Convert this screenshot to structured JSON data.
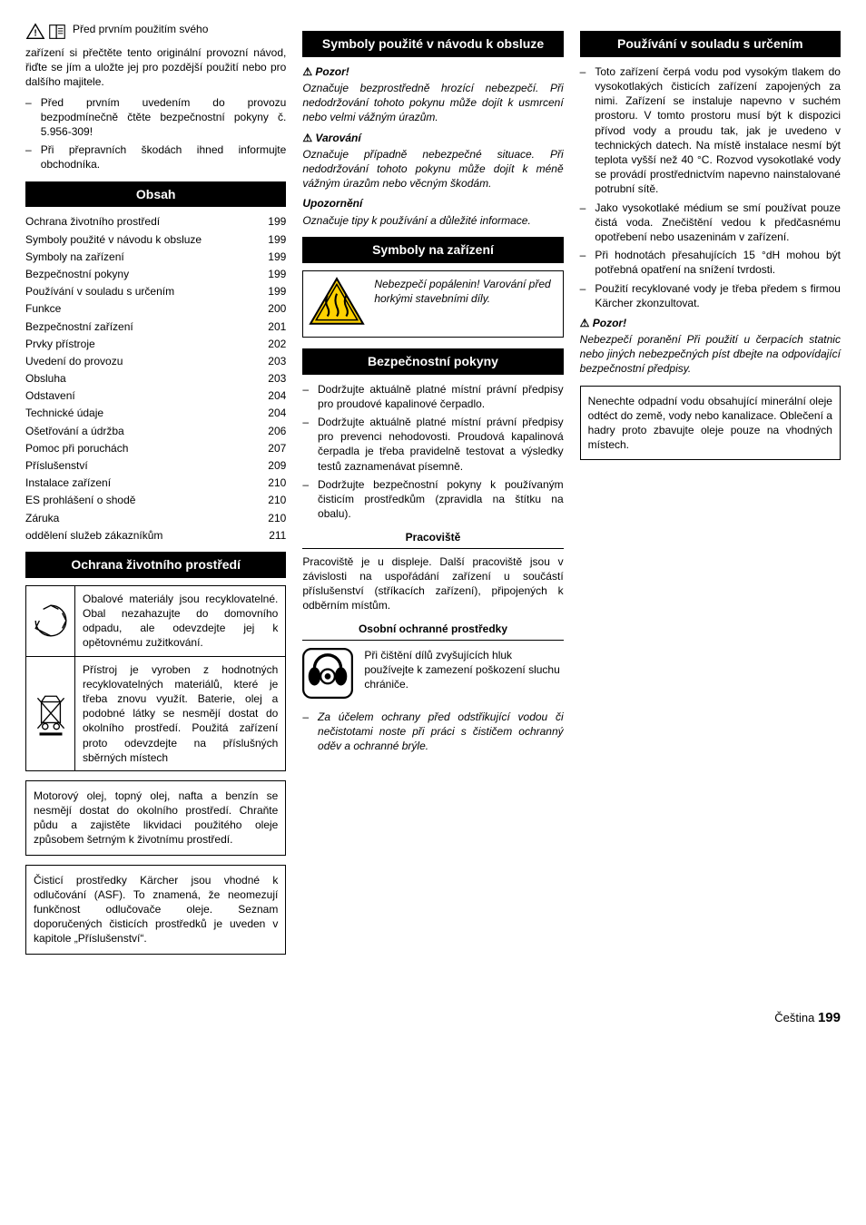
{
  "intro": {
    "lead_firstline": "Před prvním použitím svého",
    "lead_rest": "zařízení si přečtěte tento originální provozní návod, řiďte se jím a uložte jej pro pozdější použití nebo pro dalšího majitele.",
    "bullets": [
      "Před prvním uvedením do provozu bezpodmínečně čtěte bezpečnostní pokyny č. 5.956-309!",
      "Při přepravních škodách ihned informujte obchodníka."
    ]
  },
  "obsah": {
    "title": "Obsah",
    "rows": [
      {
        "label": "Ochrana životního prostředí",
        "page": "199"
      },
      {
        "label": "Symboly použité v návodu k obsluze",
        "page": "199"
      },
      {
        "label": "Symboly na zařízení",
        "page": "199"
      },
      {
        "label": "Bezpečnostní pokyny",
        "page": "199"
      },
      {
        "label": "Používání v souladu s určením",
        "page": "199"
      },
      {
        "label": "Funkce",
        "page": "200"
      },
      {
        "label": "Bezpečnostní zařízení",
        "page": "201"
      },
      {
        "label": "Prvky přístroje",
        "page": "202"
      },
      {
        "label": "Uvedení do provozu",
        "page": "203"
      },
      {
        "label": "Obsluha",
        "page": "203"
      },
      {
        "label": "Odstavení",
        "page": "204"
      },
      {
        "label": "Technické údaje",
        "page": "204"
      },
      {
        "label": "Ošetřování a údržba",
        "page": "206"
      },
      {
        "label": "Pomoc při poruchách",
        "page": "207"
      },
      {
        "label": "Příslušenství",
        "page": "209"
      },
      {
        "label": "Instalace zařízení",
        "page": "210"
      },
      {
        "label": "ES prohlášení o shodě",
        "page": "210"
      },
      {
        "label": "Záruka",
        "page": "210"
      },
      {
        "label": "oddělení služeb zákazníkům",
        "page": "211"
      }
    ]
  },
  "env": {
    "title": "Ochrana životního prostředí",
    "row1": "Obalové materiály jsou recyklovatelné. Obal nezahazujte do domovního odpadu, ale odevzdejte jej k opětovnému zužitkování.",
    "row2": "Přístroj je vyroben z hodnotných recyklovatelných materiálů, které je třeba znovu využít. Baterie, olej a podobné látky se nesmějí dostat do okolního prostředí. Použitá zařízení proto odevzdejte na příslušných sběrných místech",
    "box1": "Motorový olej, topný olej, nafta a benzín se nesmějí dostat do okolního prostředí. Chraňte půdu a zajistěte likvidaci použitého oleje způsobem šetrným k životnímu prostředí.",
    "box2": "Čisticí prostředky Kärcher jsou vhodné k odlučování (ASF). To znamená, že neomezují funkčnost odlučovače oleje. Seznam doporučených čisticích prostředků je uveden v kapitole „Příslušenství“."
  },
  "symbols_manual": {
    "title": "Symboly použité v návodu k obsluze",
    "pozor": {
      "label": "Pozor!",
      "text": "Označuje bezprostředně hrozící nebezpečí. Při nedodržování tohoto pokynu může dojít k usmrcení nebo velmi vážným úrazům."
    },
    "varovani": {
      "label": "Varování",
      "text": "Označuje případně nebezpečné situace. Při nedodržování tohoto pokynu může dojít k méně vážným úrazům nebo věcným škodám."
    },
    "upozorneni": {
      "label": "Upozornění",
      "text": "Označuje tipy k používání a důležité informace."
    }
  },
  "symbols_device": {
    "title": "Symboly na zařízení",
    "text": "Nebezpečí popálenin! Varování před horkými stavebními díly."
  },
  "safety": {
    "title": "Bezpečnostní pokyny",
    "bullets": [
      "Dodržujte aktuálně platné místní právní předpisy pro proudové kapalinové čerpadlo.",
      "Dodržujte aktuálně platné místní právní předpisy pro prevenci nehodovosti. Proudová kapalinová čerpadla je třeba pravidelně testovat a výsledky testů zaznamenávat písemně.",
      "Dodržujte bezpečnostní pokyny k používaným čisticím prostředkům (zpravidla na štítku na obalu)."
    ],
    "pracoviste": {
      "title": "Pracoviště",
      "text": "Pracoviště je u displeje. Další pracoviště jsou v závislosti na uspořádání zařízení u součástí příslušenství (stříkacích zařízení), připojených k odběrním místům."
    },
    "ppe": {
      "title": "Osobní ochranné prostředky",
      "text": "Při čištění dílů zvyšujících hluk používejte k zamezení poškození sluchu chrániče.",
      "bullet": "Za účelem ochrany před odstřikující vodou či nečistotami noste při práci s čističem ochranný oděv a ochranné brýle."
    }
  },
  "use": {
    "title": "Používání v souladu s určením",
    "bullets": [
      "Toto zařízení čerpá vodu pod vysokým tlakem do vysokotlakých čisticích zařízení zapojených za nimi. Zařízení se instaluje napevno v suchém prostoru. V tomto prostoru musí být k dispozici přívod vody a proudu tak, jak je uvedeno v technických datech.  Na místě instalace nesmí být teplota vyšší než 40 °C. Rozvod vysokotlaké vody se provádí prostřednictvím napevno nainstalované potrubní sítě.",
      "Jako vysokotlaké médium se smí používat pouze čistá voda. Znečištění vedou k předčasnému opotřebení nebo usazeninám v zařízení.",
      "Při hodnotách přesahujících 15 °dH mohou být potřebná opatření na snížení tvrdosti.",
      "Použití recyklované vody je třeba předem s firmou Kärcher zkonzultovat."
    ],
    "pozor": {
      "label": "Pozor!",
      "text": "Nebezpečí poranění Při použití u čerpacích statnic nebo jiných nebezpečných píst dbejte na odpovídající bezpečnostní předpisy."
    },
    "box": "Nenechte odpadní vodu obsahující minerální oleje odtéct do země, vody nebo kanalizace. Oblečení a hadry proto zbavujte oleje pouze na vhodných místech."
  },
  "footer": {
    "lang": "Čeština",
    "page": "199"
  }
}
